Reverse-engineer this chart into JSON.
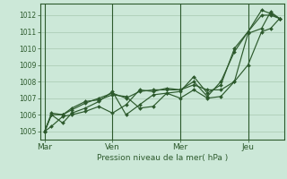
{
  "background_color": "#cce8d8",
  "grid_color": "#a8c8b0",
  "line_color": "#2d5a2d",
  "xlabel": "Pression niveau de la mer( hPa )",
  "ylim": [
    1004.5,
    1012.7
  ],
  "yticks": [
    1005,
    1006,
    1007,
    1008,
    1009,
    1010,
    1011,
    1012
  ],
  "xtick_labels": [
    "Mar",
    "Ven",
    "Mer",
    "Jeu"
  ],
  "xtick_positions": [
    0,
    30,
    60,
    90
  ],
  "xlim": [
    -2,
    106
  ],
  "series": [
    [
      0,
      3,
      8,
      12,
      18,
      24,
      30,
      36,
      42,
      48,
      54,
      60,
      66,
      72,
      78,
      84,
      90,
      96,
      100,
      104
    ],
    [
      1005.0,
      1005.3,
      1005.9,
      1006.0,
      1006.2,
      1006.5,
      1006.1,
      1006.6,
      1007.5,
      1007.4,
      1007.6,
      1007.5,
      1008.0,
      1007.1,
      1008.0,
      1009.8,
      1011.0,
      1012.3,
      1012.1,
      1011.8
    ],
    [
      0,
      3,
      8,
      12,
      18,
      24,
      30,
      36,
      42,
      48,
      54,
      60,
      66,
      72,
      78,
      84,
      90,
      96,
      100,
      104
    ],
    [
      1005.0,
      1006.0,
      1005.5,
      1006.1,
      1006.4,
      1006.8,
      1007.4,
      1006.0,
      1006.6,
      1007.2,
      1007.3,
      1007.0,
      1007.5,
      1007.0,
      1007.1,
      1008.0,
      1010.9,
      1011.2,
      1012.2,
      1011.8
    ],
    [
      0,
      3,
      8,
      12,
      18,
      24,
      30,
      36,
      42,
      48,
      54,
      60,
      66,
      72,
      78,
      84,
      90,
      96,
      100,
      104
    ],
    [
      1005.0,
      1006.1,
      1006.0,
      1006.4,
      1006.8,
      1006.9,
      1007.2,
      1007.1,
      1006.4,
      1006.5,
      1007.3,
      1007.4,
      1008.3,
      1007.3,
      1007.8,
      1010.0,
      1011.0,
      1012.0,
      1012.0,
      1011.8
    ],
    [
      0,
      3,
      8,
      12,
      18,
      24,
      30,
      36,
      42,
      48,
      54,
      60,
      66,
      72,
      78,
      84,
      90,
      96,
      100,
      104
    ],
    [
      1005.0,
      1006.0,
      1006.0,
      1006.3,
      1006.7,
      1007.0,
      1007.3,
      1007.0,
      1007.4,
      1007.5,
      1007.5,
      1007.5,
      1007.8,
      1007.5,
      1007.5,
      1008.0,
      1009.0,
      1011.0,
      1011.2,
      1011.8
    ]
  ],
  "vlines": [
    0,
    30,
    60,
    90
  ]
}
